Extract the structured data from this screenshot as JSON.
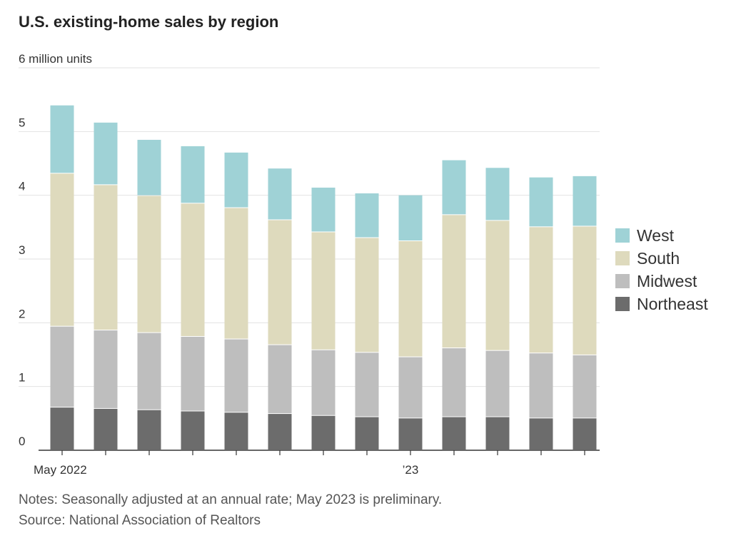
{
  "title": "U.S. existing-home sales by region",
  "colors": {
    "West": "#9fd2d6",
    "South": "#dedabd",
    "Midwest": "#bebebe",
    "Northeast": "#6c6c6c",
    "grid": "#e2e2e2",
    "axis": "#333333"
  },
  "legend": [
    {
      "label": "West",
      "color": "#9fd2d6"
    },
    {
      "label": "South",
      "color": "#dedabd"
    },
    {
      "label": "Midwest",
      "color": "#bebebe"
    },
    {
      "label": "Northeast",
      "color": "#6c6c6c"
    }
  ],
  "notes": "Notes: Seasonally adjusted at an annual rate; May 2023 is preliminary.",
  "source": "Source: National Association of Realtors",
  "chart_data": {
    "type": "bar",
    "stacked": true,
    "title": "U.S. existing-home sales by region",
    "ylabel": "",
    "y_unit_label": "6 million units",
    "ylim": [
      0,
      6
    ],
    "y_ticks": [
      {
        "value": 0,
        "label": "0"
      },
      {
        "value": 1,
        "label": "1"
      },
      {
        "value": 2,
        "label": "2"
      },
      {
        "value": 3,
        "label": "3"
      },
      {
        "value": 4,
        "label": "4"
      },
      {
        "value": 5,
        "label": "5"
      },
      {
        "value": 6,
        "label": "6 million units"
      }
    ],
    "grid": true,
    "legend_position": "right",
    "categories": [
      "2022-05",
      "2022-06",
      "2022-07",
      "2022-08",
      "2022-09",
      "2022-10",
      "2022-11",
      "2022-12",
      "2023-01",
      "2023-02",
      "2023-03",
      "2023-04",
      "2023-05"
    ],
    "x_tick_labels": [
      {
        "index": 0,
        "label": "May 2022"
      },
      {
        "index": 8,
        "label": "’23"
      }
    ],
    "series": [
      {
        "name": "Northeast",
        "values": [
          0.67,
          0.65,
          0.63,
          0.61,
          0.59,
          0.57,
          0.54,
          0.52,
          0.5,
          0.52,
          0.52,
          0.5,
          0.5
        ]
      },
      {
        "name": "Midwest",
        "values": [
          1.27,
          1.23,
          1.21,
          1.17,
          1.15,
          1.08,
          1.03,
          1.01,
          0.96,
          1.08,
          1.04,
          1.02,
          0.99
        ]
      },
      {
        "name": "South",
        "values": [
          2.4,
          2.28,
          2.15,
          2.09,
          2.06,
          1.96,
          1.85,
          1.8,
          1.82,
          2.09,
          2.04,
          1.98,
          2.02
        ]
      },
      {
        "name": "West",
        "values": [
          1.07,
          0.98,
          0.88,
          0.9,
          0.87,
          0.81,
          0.7,
          0.7,
          0.72,
          0.86,
          0.83,
          0.78,
          0.79
        ]
      }
    ]
  }
}
